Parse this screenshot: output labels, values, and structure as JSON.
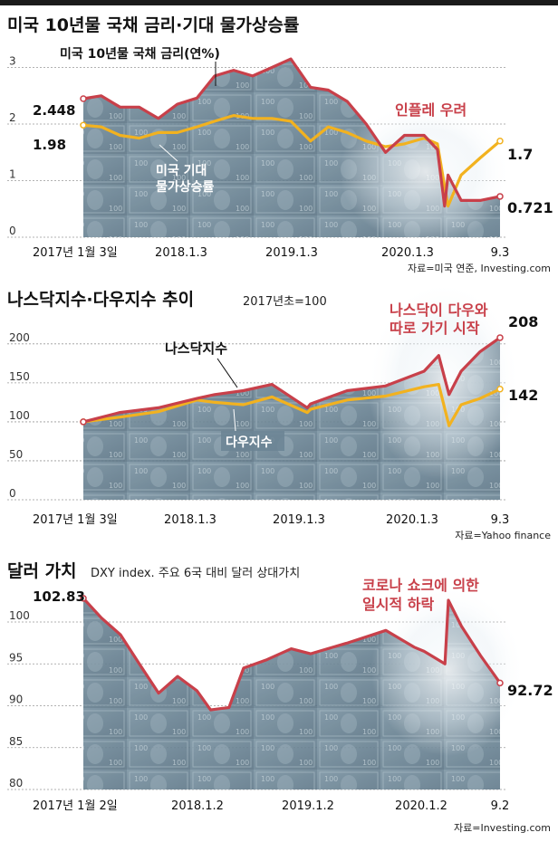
{
  "charts": [
    {
      "title": "미국 10년물 국채 금리·기대 물가상승률",
      "source": "자료=미국 연준, Investing.com",
      "annotation": "인플레 우려",
      "y_ticks": [
        "0",
        "1",
        "2",
        "3"
      ],
      "x_ticks": [
        "2017년 1월 3일",
        "2018.1.3",
        "2019.1.3",
        "2020.1.3",
        "9.3"
      ],
      "series_labels": [
        "미국 10년물 국채 금리(연%)",
        "미국 기대\n물가상승률"
      ],
      "start_labels": [
        "2.448",
        "1.98"
      ],
      "end_labels": [
        "0.721",
        "1.7"
      ]
    },
    {
      "title": "나스닥지수·다우지수 추이",
      "subtitle": "2017년초=100",
      "source": "자료=Yahoo finance",
      "annotation_lines": [
        "나스닥이 다우와",
        "따로 가기 시작"
      ],
      "y_ticks": [
        "0",
        "50",
        "100",
        "150",
        "200"
      ],
      "x_ticks": [
        "2017년 1월 3일",
        "2018.1.3",
        "2019.1.3",
        "2020.1.3",
        "9.3"
      ],
      "series_labels": [
        "나스닥지수",
        "다우지수"
      ],
      "end_labels": [
        "208",
        "142"
      ]
    },
    {
      "title": "달러 가치",
      "subtitle": "DXY index. 주요 6국 대비 달러 상대가치",
      "source": "자료=Investing.com",
      "annotation_lines": [
        "코로나 쇼크에 의한",
        "일시적 하락"
      ],
      "y_ticks": [
        "80",
        "85",
        "90",
        "95",
        "100"
      ],
      "x_ticks": [
        "2017년 1월 2일",
        "2018.1.2",
        "2019.1.2",
        "2020.1.2",
        "9.2"
      ],
      "start_label": "102.83",
      "end_label": "92.72"
    }
  ],
  "colors": {
    "red": "#c8404a",
    "yellow": "#f2b21f",
    "dark": "#222222",
    "grid": "#999999"
  },
  "chart_data": [
    {
      "type": "line",
      "title": "미국 10년물 국채 금리·기대 물가상승률",
      "x": [
        "2017-01-03",
        "2017-03-01",
        "2017-05-01",
        "2017-07-01",
        "2017-09-01",
        "2017-11-01",
        "2018-01-03",
        "2018-03-01",
        "2018-05-01",
        "2018-07-01",
        "2018-09-01",
        "2018-11-01",
        "2019-01-03",
        "2019-03-01",
        "2019-05-01",
        "2019-07-01",
        "2019-09-01",
        "2019-11-01",
        "2020-01-03",
        "2020-02-15",
        "2020-03-09",
        "2020-03-20",
        "2020-05-01",
        "2020-07-01",
        "2020-09-03"
      ],
      "series": [
        {
          "name": "미국 10년물 국채 금리",
          "values": [
            2.448,
            2.5,
            2.3,
            2.3,
            2.1,
            2.35,
            2.46,
            2.85,
            2.95,
            2.85,
            3.0,
            3.15,
            2.65,
            2.6,
            2.4,
            2.0,
            1.5,
            1.8,
            1.8,
            1.55,
            0.55,
            1.1,
            0.65,
            0.65,
            0.721
          ]
        },
        {
          "name": "미국 기대 물가상승률",
          "values": [
            1.98,
            1.95,
            1.8,
            1.75,
            1.85,
            1.85,
            1.95,
            2.05,
            2.15,
            2.1,
            2.1,
            2.05,
            1.7,
            1.95,
            1.85,
            1.7,
            1.6,
            1.65,
            1.75,
            1.65,
            0.9,
            0.55,
            1.1,
            1.4,
            1.7
          ]
        }
      ],
      "ylim": [
        0,
        3.2
      ],
      "ylabel": "",
      "xlabel": "",
      "grid": true
    },
    {
      "type": "line",
      "title": "나스닥지수·다우지수 추이",
      "x": [
        "2017-01-03",
        "2017-05-01",
        "2017-09-01",
        "2018-01-03",
        "2018-03-01",
        "2018-06-01",
        "2018-09-01",
        "2018-12-24",
        "2019-01-03",
        "2019-05-01",
        "2019-09-01",
        "2020-01-03",
        "2020-02-19",
        "2020-03-23",
        "2020-05-01",
        "2020-07-01",
        "2020-09-03"
      ],
      "series": [
        {
          "name": "나스닥지수",
          "values": [
            100,
            112,
            118,
            130,
            135,
            140,
            148,
            118,
            123,
            140,
            146,
            165,
            185,
            135,
            165,
            190,
            208
          ]
        },
        {
          "name": "다우지수",
          "values": [
            100,
            106,
            113,
            128,
            125,
            122,
            132,
            112,
            116,
            128,
            133,
            145,
            148,
            95,
            122,
            130,
            142
          ]
        }
      ],
      "ylim": [
        0,
        230
      ],
      "ylabel": "",
      "xlabel": "",
      "grid": true
    },
    {
      "type": "line",
      "title": "달러 가치",
      "x": [
        "2017-01-02",
        "2017-03-01",
        "2017-05-01",
        "2017-07-01",
        "2017-09-01",
        "2017-11-01",
        "2018-01-02",
        "2018-02-15",
        "2018-04-15",
        "2018-06-01",
        "2018-08-15",
        "2018-11-01",
        "2019-01-02",
        "2019-05-01",
        "2019-09-01",
        "2019-12-01",
        "2020-01-02",
        "2020-03-09",
        "2020-03-20",
        "2020-05-01",
        "2020-07-01",
        "2020-09-02"
      ],
      "series": [
        {
          "name": "DXY",
          "values": [
            102.83,
            100.5,
            98.5,
            95.0,
            91.5,
            93.5,
            91.8,
            89.5,
            89.8,
            94.5,
            95.5,
            96.8,
            96.2,
            97.5,
            99.0,
            97.0,
            96.5,
            95.0,
            102.6,
            99.5,
            96.0,
            92.72
          ]
        }
      ],
      "ylim": [
        80,
        104
      ],
      "ylabel": "",
      "xlabel": "",
      "grid": true
    }
  ]
}
